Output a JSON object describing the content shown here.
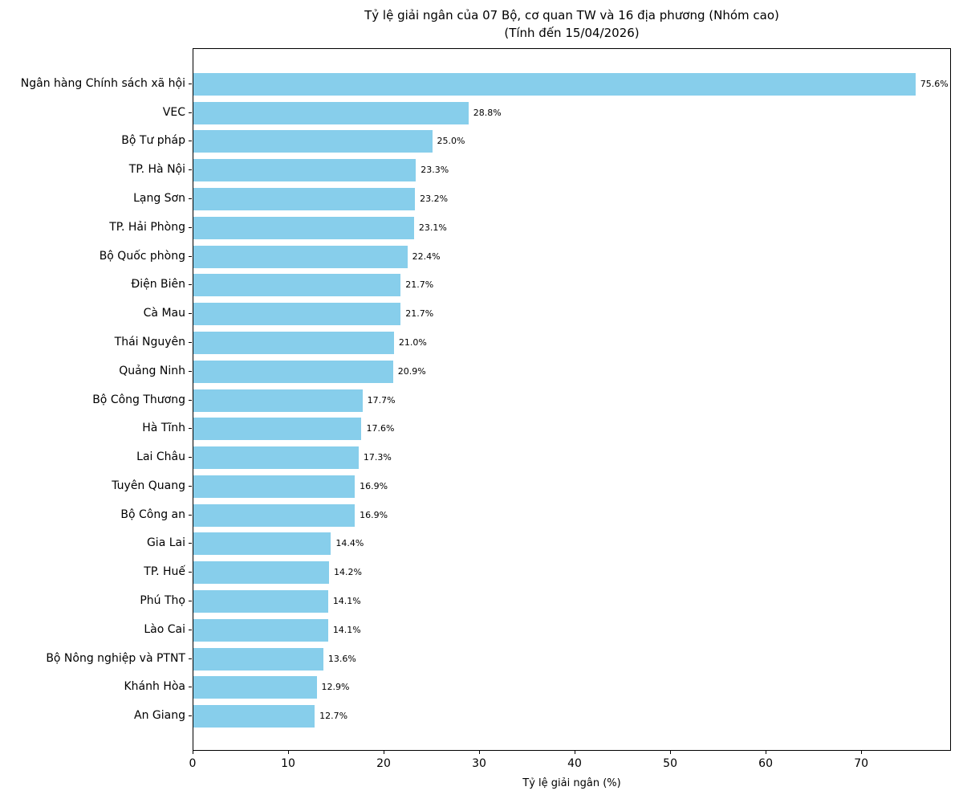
{
  "chart_data": {
    "type": "bar",
    "orientation": "horizontal",
    "title": "Tỷ lệ giải ngân của 07 Bộ, cơ quan TW và 16 địa phương (Nhóm cao)",
    "subtitle": "(Tính đến 15/04/2026)",
    "xlabel": "Tỷ lệ giải ngân (%)",
    "ylabel": "",
    "xlim": [
      0,
      79.4
    ],
    "xticks": [
      0,
      10,
      20,
      30,
      40,
      50,
      60,
      70
    ],
    "grid": false,
    "legend": false,
    "bar_color": "#87CEEB",
    "categories": [
      "Ngân hàng Chính sách xã hội",
      "VEC",
      "Bộ Tư pháp",
      "TP. Hà Nội",
      "Lạng Sơn",
      "TP. Hải Phòng",
      "Bộ Quốc phòng",
      "Điện Biên",
      "Cà Mau",
      "Thái Nguyên",
      "Quảng Ninh",
      "Bộ Công Thương",
      "Hà Tĩnh",
      "Lai Châu",
      "Tuyên Quang",
      "Bộ Công an",
      "Gia Lai",
      "TP. Huế",
      "Phú Thọ",
      "Lào Cai",
      "Bộ Nông nghiệp và PTNT",
      "Khánh Hòa",
      "An Giang"
    ],
    "values": [
      75.6,
      28.8,
      25.0,
      23.3,
      23.2,
      23.1,
      22.4,
      21.7,
      21.7,
      21.0,
      20.9,
      17.7,
      17.6,
      17.3,
      16.9,
      16.9,
      14.4,
      14.2,
      14.1,
      14.1,
      13.6,
      12.9,
      12.7
    ],
    "value_labels": [
      "75.6%",
      "28.8%",
      "25.0%",
      "23.3%",
      "23.2%",
      "23.1%",
      "22.4%",
      "21.7%",
      "21.7%",
      "21.0%",
      "20.9%",
      "17.7%",
      "17.6%",
      "17.3%",
      "16.9%",
      "16.9%",
      "14.4%",
      "14.2%",
      "14.1%",
      "14.1%",
      "13.6%",
      "12.9%",
      "12.7%"
    ]
  }
}
